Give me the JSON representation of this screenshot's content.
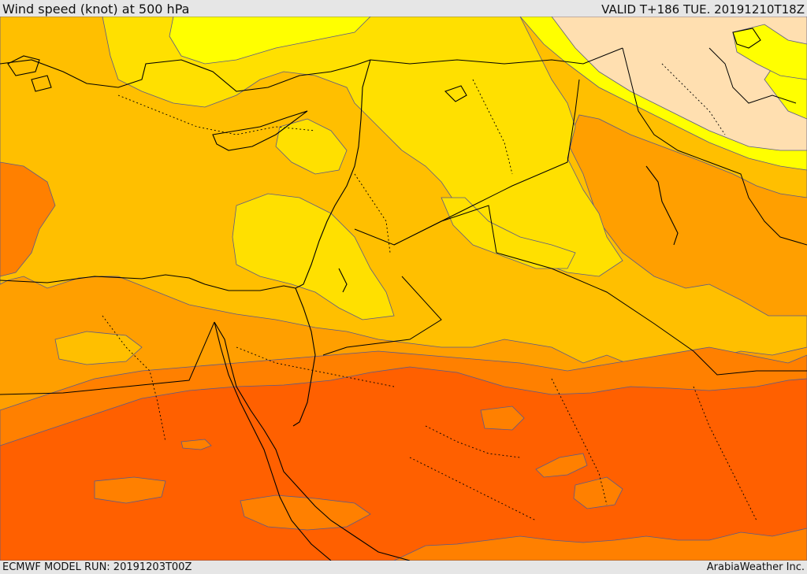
{
  "header": {
    "title": "Wind speed (knot) at 500 hPa",
    "valid": "VALID T+186 TUE. 20191210T18Z"
  },
  "footer": {
    "model_run": "ECMWF MODEL RUN: 20191203T00Z",
    "credit": "ArabiaWeather Inc."
  },
  "colors": {
    "band_lt_20": "#ffff00",
    "band_20_30": "#ffe000",
    "band_30_40": "#ffbf00",
    "band_40_50": "#ff9f00",
    "band_50_60": "#ff8000",
    "band_60_70": "#ff6000",
    "band_calm": "#ffdfb0",
    "border_line": "#000000",
    "contour_line": "#5a5a8a"
  }
}
